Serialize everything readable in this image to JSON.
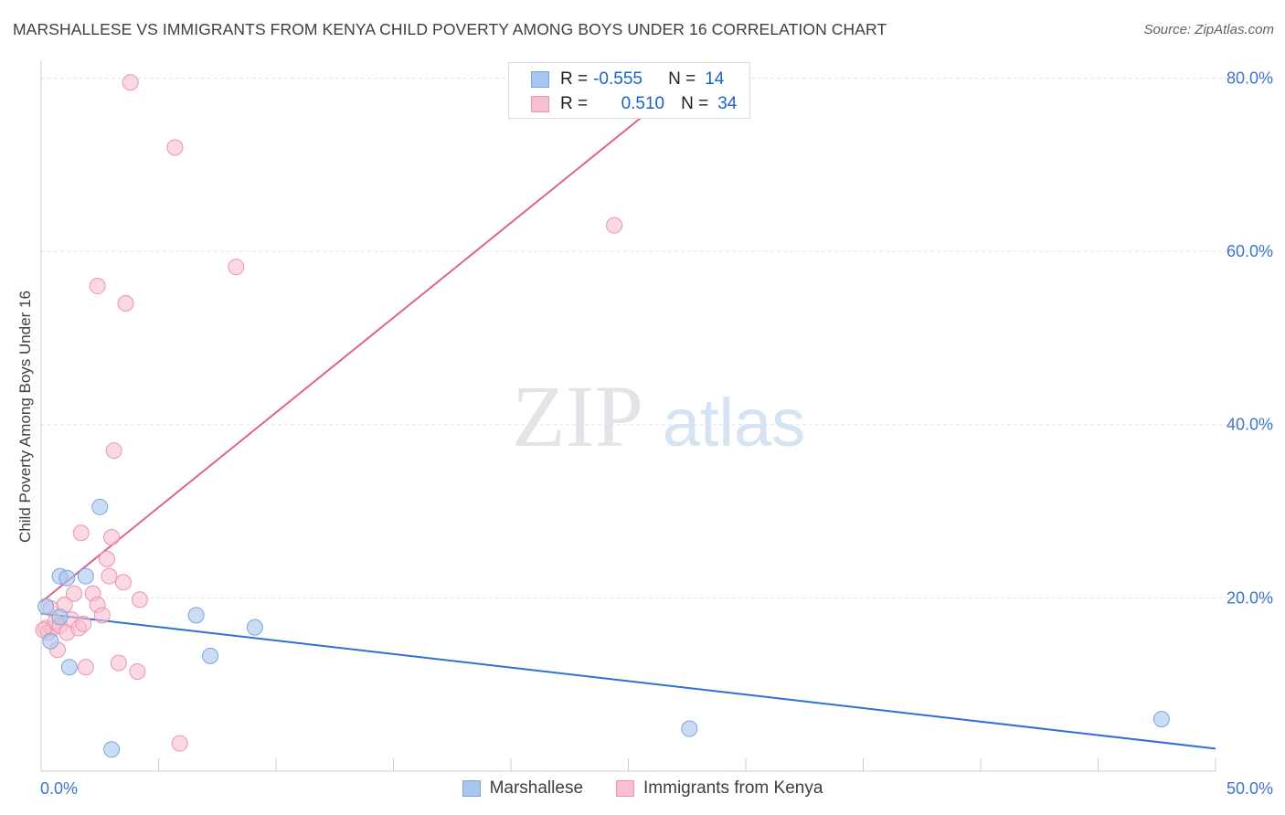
{
  "title": "MARSHALLESE VS IMMIGRANTS FROM KENYA CHILD POVERTY AMONG BOYS UNDER 16 CORRELATION CHART",
  "source": "Source: ZipAtlas.com",
  "watermark": {
    "zip": "ZIP",
    "atlas": "atlas"
  },
  "legend": {
    "r_label": "R =",
    "n_label": "N =",
    "rows": [
      {
        "r": "-0.555",
        "n": "14",
        "color": "#a9c7ee",
        "border": "#7aa5db"
      },
      {
        "r": "0.510",
        "n": "34",
        "color": "#f7c0cf",
        "border": "#ee93ae"
      }
    ]
  },
  "chart_data": {
    "type": "scatter",
    "title": "MARSHALLESE VS IMMIGRANTS FROM KENYA CHILD POVERTY AMONG BOYS UNDER 16 CORRELATION CHART",
    "xlabel": "",
    "ylabel": "Child Poverty Among Boys Under 16",
    "xlim": [
      0,
      50
    ],
    "ylim": [
      0,
      81
    ],
    "x_tick_labels": [
      "0.0%",
      "50.0%"
    ],
    "y_ticks": [
      20,
      40,
      60,
      80
    ],
    "y_tick_labels": [
      "20.0%",
      "40.0%",
      "60.0%",
      "80.0%"
    ],
    "grid": true,
    "series": [
      {
        "name": "Marshallese",
        "color": "#a9c7ee",
        "stroke": "#7aa5db",
        "line_color": "#2f6fd6",
        "points": [
          [
            0.2,
            19.0
          ],
          [
            0.4,
            15.0
          ],
          [
            0.8,
            17.8
          ],
          [
            0.8,
            22.5
          ],
          [
            1.1,
            22.3
          ],
          [
            1.2,
            12.0
          ],
          [
            1.9,
            22.5
          ],
          [
            2.5,
            30.5
          ],
          [
            3.0,
            2.5
          ],
          [
            6.6,
            18.0
          ],
          [
            7.2,
            13.3
          ],
          [
            9.1,
            16.6
          ],
          [
            27.6,
            4.9
          ],
          [
            47.7,
            6.0
          ]
        ],
        "trend": [
          [
            0,
            18.2
          ],
          [
            50,
            2.6
          ]
        ]
      },
      {
        "name": "Immigrants from Kenya",
        "color": "#f7c0cf",
        "stroke": "#ee93ae",
        "line_color": "#e0628c",
        "points": [
          [
            0.2,
            16.5
          ],
          [
            0.3,
            16.0
          ],
          [
            0.4,
            18.8
          ],
          [
            0.5,
            16.5
          ],
          [
            0.6,
            17.2
          ],
          [
            0.7,
            14.0
          ],
          [
            0.8,
            16.8
          ],
          [
            1.0,
            19.2
          ],
          [
            1.1,
            16.0
          ],
          [
            1.3,
            17.5
          ],
          [
            1.4,
            20.5
          ],
          [
            1.6,
            16.5
          ],
          [
            1.7,
            27.5
          ],
          [
            1.8,
            17.0
          ],
          [
            1.9,
            12.0
          ],
          [
            2.2,
            20.5
          ],
          [
            2.4,
            19.2
          ],
          [
            2.6,
            18.0
          ],
          [
            2.8,
            24.5
          ],
          [
            2.9,
            22.5
          ],
          [
            3.0,
            27.0
          ],
          [
            3.1,
            37.0
          ],
          [
            3.3,
            12.5
          ],
          [
            3.5,
            21.8
          ],
          [
            3.6,
            54.0
          ],
          [
            3.8,
            79.5
          ],
          [
            4.1,
            11.5
          ],
          [
            4.2,
            19.8
          ],
          [
            2.4,
            56.0
          ],
          [
            5.7,
            72.0
          ],
          [
            5.9,
            3.2
          ],
          [
            8.3,
            58.2
          ],
          [
            24.4,
            63.0
          ],
          [
            0.1,
            16.3
          ]
        ],
        "trend": [
          [
            0,
            19.5
          ],
          [
            25.8,
            76.0
          ]
        ]
      }
    ]
  },
  "bottom_legend": [
    {
      "label": "Marshallese",
      "color": "#a9c7ee",
      "border": "#7aa5db"
    },
    {
      "label": "Immigrants from Kenya",
      "color": "#f7c0cf",
      "border": "#ee93ae"
    }
  ]
}
